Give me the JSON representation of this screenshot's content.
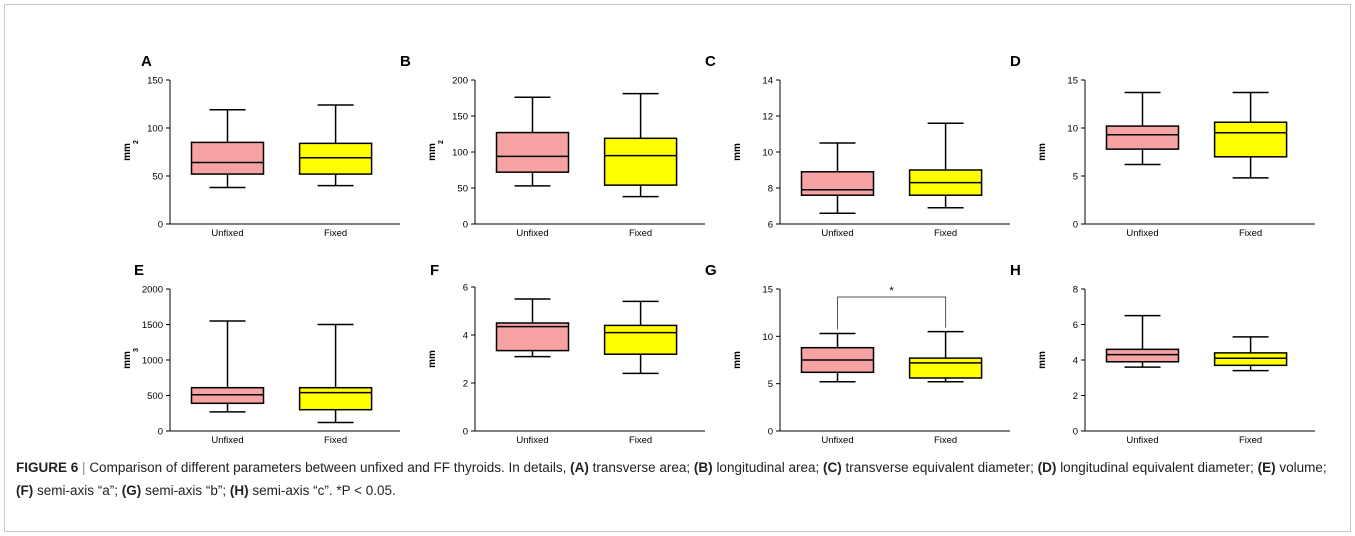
{
  "colors": {
    "unfixed": "#f7a3a3",
    "fixed": "#ffff00",
    "stroke": "#000000"
  },
  "chart_data": [
    {
      "type": "box",
      "panel": "A",
      "ylabel": "mm",
      "ylabel_sup": "2",
      "ylim": [
        0,
        150
      ],
      "yticks": [
        "0",
        "50",
        "100",
        "150"
      ],
      "categories": [
        "Unfixed",
        "Fixed"
      ],
      "boxes": [
        {
          "name": "Unfixed",
          "min": 38,
          "q1": 52,
          "median": 64,
          "q3": 85,
          "max": 119
        },
        {
          "name": "Fixed",
          "min": 40,
          "q1": 52,
          "median": 69,
          "q3": 84,
          "max": 124
        }
      ]
    },
    {
      "type": "box",
      "panel": "B",
      "ylabel": "mm",
      "ylabel_sup": "2",
      "ylim": [
        0,
        200
      ],
      "yticks": [
        "0",
        "50",
        "100",
        "150",
        "200"
      ],
      "categories": [
        "Unfixed",
        "Fixed"
      ],
      "boxes": [
        {
          "name": "Unfixed",
          "min": 53,
          "q1": 72,
          "median": 94,
          "q3": 127,
          "max": 176
        },
        {
          "name": "Fixed",
          "min": 38,
          "q1": 54,
          "median": 95,
          "q3": 119,
          "max": 181
        }
      ]
    },
    {
      "type": "box",
      "panel": "C",
      "ylabel": "mm",
      "ylabel_sup": "",
      "ylim": [
        6,
        14
      ],
      "yticks": [
        "6",
        "8",
        "10",
        "12",
        "14"
      ],
      "categories": [
        "Unfixed",
        "Fixed"
      ],
      "boxes": [
        {
          "name": "Unfixed",
          "min": 6.6,
          "q1": 7.6,
          "median": 7.9,
          "q3": 8.9,
          "max": 10.5
        },
        {
          "name": "Fixed",
          "min": 6.9,
          "q1": 7.6,
          "median": 8.3,
          "q3": 9.0,
          "max": 11.6
        }
      ]
    },
    {
      "type": "box",
      "panel": "D",
      "ylabel": "mm",
      "ylabel_sup": "",
      "ylim": [
        0,
        15
      ],
      "yticks": [
        "0",
        "5",
        "10",
        "15"
      ],
      "categories": [
        "Unfixed",
        "Fixed"
      ],
      "boxes": [
        {
          "name": "Unfixed",
          "min": 6.2,
          "q1": 7.8,
          "median": 9.3,
          "q3": 10.2,
          "max": 13.7
        },
        {
          "name": "Fixed",
          "min": 4.8,
          "q1": 7.0,
          "median": 9.5,
          "q3": 10.6,
          "max": 13.7
        }
      ]
    },
    {
      "type": "box",
      "panel": "E",
      "ylabel": "mm",
      "ylabel_sup": "3",
      "ylim": [
        0,
        2000
      ],
      "yticks": [
        "0",
        "500",
        "1000",
        "1500",
        "2000"
      ],
      "categories": [
        "Unfixed",
        "Fixed"
      ],
      "boxes": [
        {
          "name": "Unfixed",
          "min": 270,
          "q1": 390,
          "median": 510,
          "q3": 610,
          "max": 1550
        },
        {
          "name": "Fixed",
          "min": 120,
          "q1": 300,
          "median": 540,
          "q3": 610,
          "max": 1500
        }
      ]
    },
    {
      "type": "box",
      "panel": "F",
      "ylabel": "mm",
      "ylabel_sup": "",
      "ylim": [
        0,
        6
      ],
      "yticks": [
        "0",
        "2",
        "4",
        "6"
      ],
      "categories": [
        "Unfixed",
        "Fixed"
      ],
      "boxes": [
        {
          "name": "Unfixed",
          "min": 3.1,
          "q1": 3.35,
          "median": 4.35,
          "q3": 4.5,
          "max": 5.5
        },
        {
          "name": "Fixed",
          "min": 2.4,
          "q1": 3.2,
          "median": 4.1,
          "q3": 4.4,
          "max": 5.4
        }
      ]
    },
    {
      "type": "box",
      "panel": "G",
      "ylabel": "mm",
      "ylabel_sup": "",
      "ylim": [
        0,
        15
      ],
      "yticks": [
        "0",
        "5",
        "10",
        "15"
      ],
      "categories": [
        "Unfixed",
        "Fixed"
      ],
      "significance": "*",
      "boxes": [
        {
          "name": "Unfixed",
          "min": 5.2,
          "q1": 6.2,
          "median": 7.5,
          "q3": 8.8,
          "max": 10.3
        },
        {
          "name": "Fixed",
          "min": 5.2,
          "q1": 5.6,
          "median": 7.2,
          "q3": 7.7,
          "max": 10.5
        }
      ]
    },
    {
      "type": "box",
      "panel": "H",
      "ylabel": "mm",
      "ylabel_sup": "",
      "ylim": [
        0,
        8
      ],
      "yticks": [
        "0",
        "2",
        "4",
        "6",
        "8"
      ],
      "categories": [
        "Unfixed",
        "Fixed"
      ],
      "boxes": [
        {
          "name": "Unfixed",
          "min": 3.6,
          "q1": 3.9,
          "median": 4.3,
          "q3": 4.6,
          "max": 6.5
        },
        {
          "name": "Fixed",
          "min": 3.4,
          "q1": 3.7,
          "median": 4.1,
          "q3": 4.4,
          "max": 5.3
        }
      ]
    }
  ],
  "caption": {
    "figure_label": "FIGURE 6",
    "separator": "|",
    "intro": "Comparison of different parameters between unfixed and FF thyroids. In details,",
    "items": [
      {
        "key": "(A)",
        "text": "transverse area;"
      },
      {
        "key": "(B)",
        "text": "longitudinal area;"
      },
      {
        "key": "(C)",
        "text": "transverse equivalent diameter;"
      },
      {
        "key": "(D)",
        "text": "longitudinal equivalent diameter;"
      },
      {
        "key": "(E)",
        "text": "volume;"
      },
      {
        "key": "(F)",
        "text": "semi-axis “a”;"
      },
      {
        "key": "(G)",
        "text": "semi-axis “b”;"
      },
      {
        "key": "(H)",
        "text": "semi-axis “c”. *P < 0.05."
      }
    ]
  }
}
